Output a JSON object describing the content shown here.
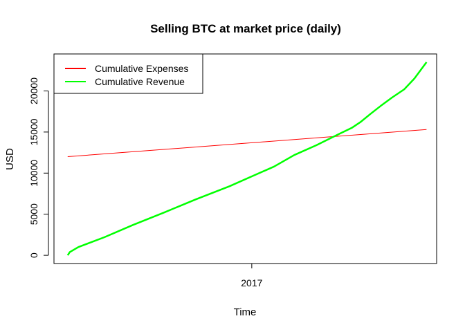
{
  "chart_data": {
    "type": "line",
    "title": "Selling BTC at market price (daily)",
    "xlabel": "Time",
    "ylabel": "USD",
    "x_tick_labels": [
      "2017"
    ],
    "y_ticks": [
      0,
      5000,
      10000,
      15000,
      20000
    ],
    "y_tick_labels": [
      "0",
      "5000",
      "10000",
      "15000",
      "20000"
    ],
    "xlim": [
      "2016-04-01",
      "2017-09-15"
    ],
    "x_ticks": [
      "2017-01-01"
    ],
    "ylim": [
      -1000,
      24500
    ],
    "grid": false,
    "legend_position": "top-left",
    "series": [
      {
        "name": "Cumulative Expenses",
        "color": "#ff0000",
        "x": [
          "2016-04-20",
          "2017-09-01"
        ],
        "values": [
          12000,
          15300
        ]
      },
      {
        "name": "Cumulative Revenue",
        "color": "#00ff00",
        "x": [
          "2016-04-20",
          "2016-04-23",
          "2016-05-05",
          "2016-06-10",
          "2016-07-20",
          "2016-09-01",
          "2016-10-15",
          "2016-12-01",
          "2017-01-01",
          "2017-02-01",
          "2017-03-01",
          "2017-04-01",
          "2017-05-01",
          "2017-05-20",
          "2017-06-01",
          "2017-06-15",
          "2017-07-01",
          "2017-07-15",
          "2017-08-01",
          "2017-08-15",
          "2017-09-01"
        ],
        "values": [
          0,
          400,
          1000,
          2200,
          3700,
          5200,
          6800,
          8400,
          9600,
          10800,
          12200,
          13400,
          14700,
          15500,
          16200,
          17200,
          18300,
          19200,
          20200,
          21500,
          23500
        ]
      }
    ]
  }
}
